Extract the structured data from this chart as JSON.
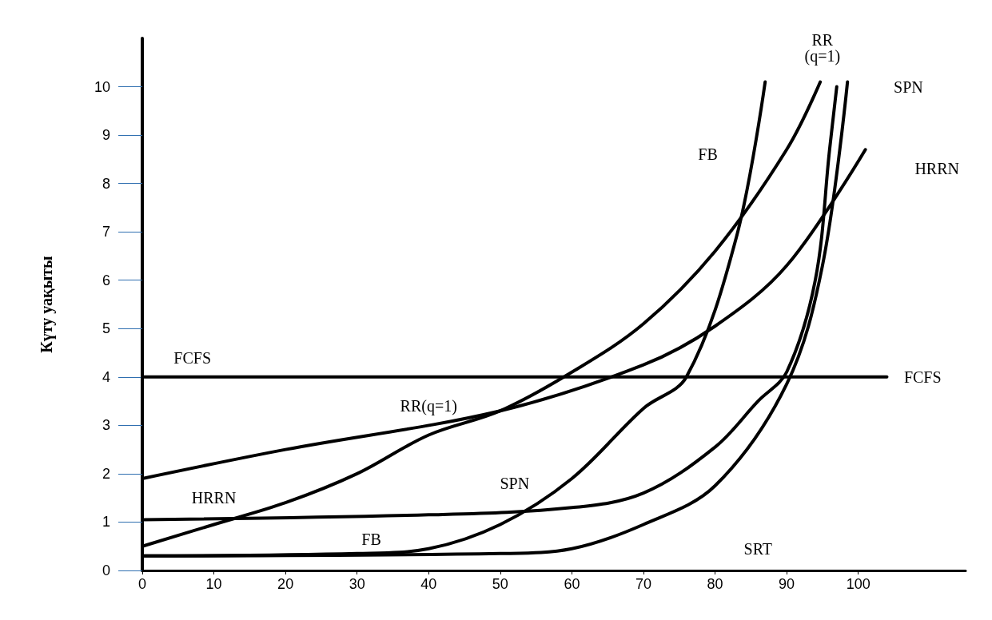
{
  "chart_data": {
    "type": "line",
    "ylabel": "Күту уақыты",
    "xlim": [
      0,
      115
    ],
    "ylim": [
      0,
      11
    ],
    "xticks": [
      0,
      10,
      20,
      30,
      40,
      50,
      60,
      70,
      80,
      90,
      100
    ],
    "yticks": [
      0,
      1,
      2,
      3,
      4,
      5,
      6,
      7,
      8,
      9,
      10
    ],
    "grid": false,
    "marker": "none",
    "line_style": "solid",
    "series": [
      {
        "color": "#000000",
        "x": [
          0,
          104
        ],
        "values": [
          4,
          4
        ]
      },
      {
        "color": "#000000",
        "x": [
          0,
          10,
          20,
          30,
          40,
          50,
          60,
          70,
          80,
          90,
          94.7
        ],
        "values": [
          0.5,
          0.95,
          1.4,
          2.0,
          2.8,
          3.3,
          4.1,
          5.1,
          6.6,
          8.7,
          10.1
        ]
      },
      {
        "color": "#000000",
        "x": [
          0,
          20,
          50,
          70,
          80,
          90,
          101
        ],
        "values": [
          1.9,
          2.5,
          3.3,
          4.25,
          5.05,
          6.3,
          8.7
        ]
      },
      {
        "color": "#000000",
        "x": [
          0,
          40,
          60,
          70,
          80,
          86,
          90,
          94,
          96,
          97
        ],
        "values": [
          1.05,
          1.15,
          1.3,
          1.6,
          2.55,
          3.5,
          4.1,
          6.0,
          8.7,
          10
        ]
      },
      {
        "color": "#000000",
        "x": [
          0,
          30,
          40,
          50,
          60,
          70,
          76,
          83,
          87
        ],
        "values": [
          0.3,
          0.35,
          0.45,
          0.95,
          1.9,
          3.35,
          4,
          6.9,
          10.1
        ]
      },
      {
        "color": "#000000",
        "x": [
          0,
          50,
          60,
          70,
          80,
          90,
          95,
          98.5
        ],
        "values": [
          0.3,
          0.35,
          0.45,
          0.95,
          1.75,
          3.85,
          6.3,
          10.1
        ]
      }
    ],
    "annotations": [
      "FCFS",
      "FCFS",
      "RR(q=1)",
      "HRRN",
      "SPN",
      "FB",
      "SRT",
      "FB",
      "RR (q=1)",
      "SPN",
      "HRRN"
    ]
  }
}
